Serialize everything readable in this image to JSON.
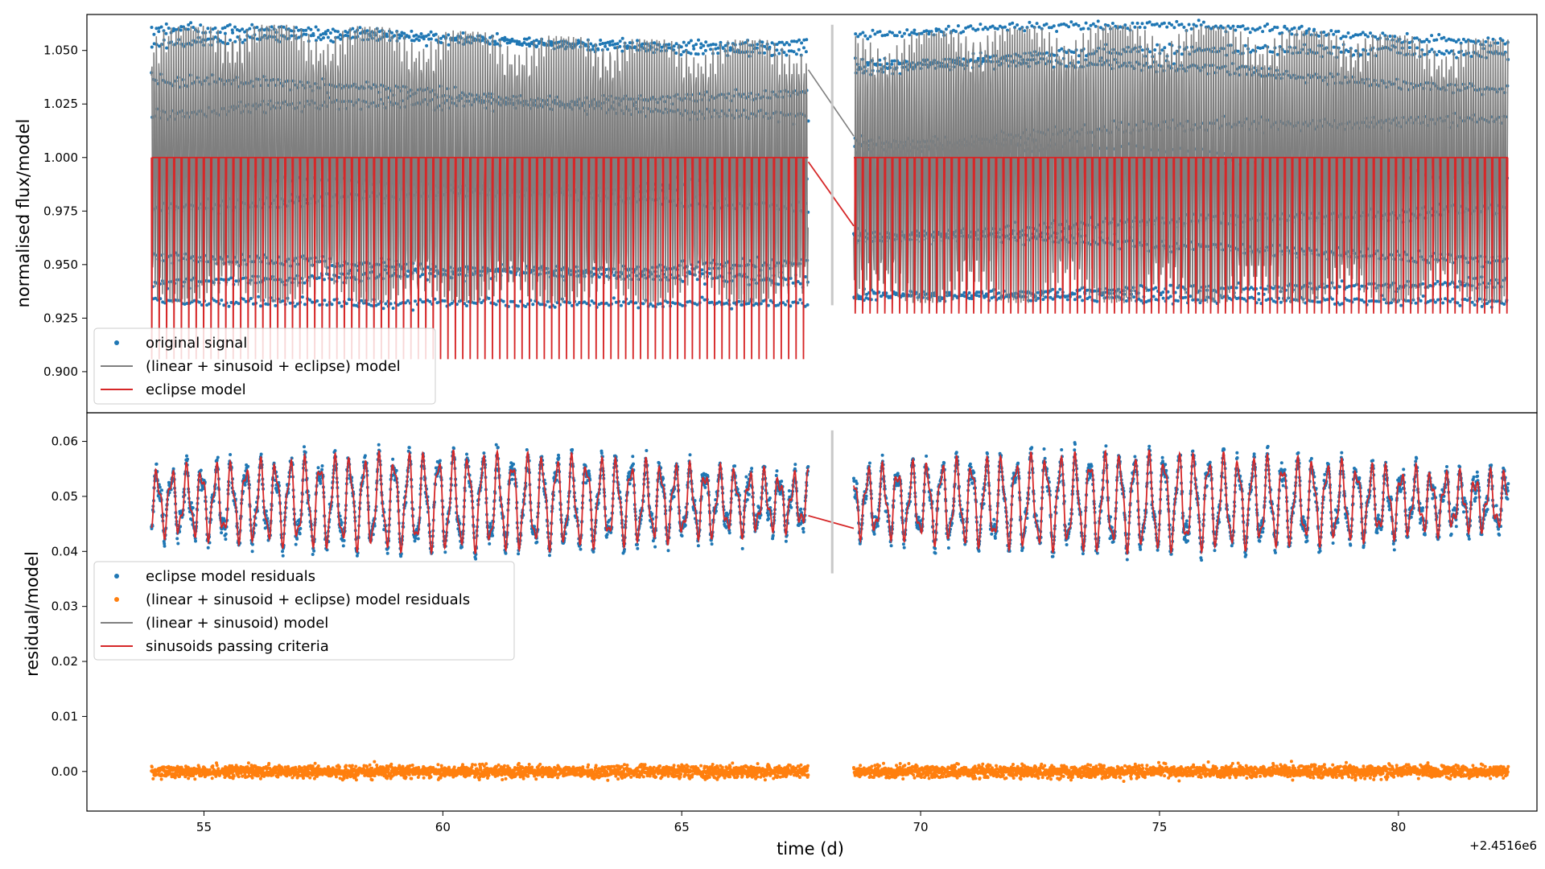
{
  "figure": {
    "xlabel": "time (d)",
    "x_offset_label": "+2.4516e6",
    "x_ticks": [
      55,
      60,
      65,
      70,
      75,
      80
    ],
    "x_range": [
      52.55,
      82.9
    ]
  },
  "chart_data": [
    {
      "type": "scatter",
      "panel": "top",
      "ylabel": "normalised flux/model",
      "ylim": [
        0.8808,
        1.0668
      ],
      "y_ticks": [
        0.9,
        0.925,
        0.95,
        0.975,
        1.0,
        1.025,
        1.05
      ],
      "y_tick_labels": [
        "0.900",
        "0.925",
        "0.950",
        "0.975",
        "1.000",
        "1.025",
        "1.050"
      ],
      "legend_position": "lower-left",
      "time_segments": [
        [
          53.9,
          67.65
        ],
        [
          68.6,
          82.3
        ]
      ],
      "gap_marker": {
        "x": 68.15,
        "y_from": 0.931,
        "y_to": 1.062
      },
      "series": [
        {
          "name": "original signal",
          "kind": "points",
          "color": "#1f77b4",
          "upper_envelope": [
            1.055,
            1.062
          ],
          "lower_bound": 0.932,
          "eclipse_bottom": 0.887
        },
        {
          "name": "(linear + sinusoid + eclipse) model",
          "kind": "line",
          "color": "#7f7f7f"
        },
        {
          "name": "eclipse model",
          "kind": "line",
          "color": "#d62728",
          "baseline": 1.0,
          "minimum": 0.887,
          "approx_period_days": 0.155
        }
      ]
    },
    {
      "type": "scatter",
      "panel": "bottom",
      "ylabel": "residual/model",
      "ylim": [
        -0.0072,
        0.0652
      ],
      "y_ticks": [
        0.0,
        0.01,
        0.02,
        0.03,
        0.04,
        0.05,
        0.06
      ],
      "y_tick_labels": [
        "0.00",
        "0.01",
        "0.02",
        "0.03",
        "0.04",
        "0.05",
        "0.06"
      ],
      "legend_position": "center-left",
      "gap_marker": {
        "x": 68.15,
        "y_from": 0.036,
        "y_to": 0.062
      },
      "series": [
        {
          "name": "eclipse model residuals",
          "kind": "points",
          "color": "#1f77b4",
          "center": 0.05,
          "range": [
            0.036,
            0.062
          ]
        },
        {
          "name": "(linear + sinusoid + eclipse) model residuals",
          "kind": "points",
          "color": "#ff7f0e",
          "center": 0.0,
          "range": [
            -0.004,
            0.005
          ]
        },
        {
          "name": "(linear + sinusoid) model",
          "kind": "line",
          "color": "#7f7f7f"
        },
        {
          "name": "sinusoids passing criteria",
          "kind": "line",
          "color": "#d62728",
          "center": 0.049,
          "range": [
            0.038,
            0.058
          ]
        }
      ]
    }
  ]
}
